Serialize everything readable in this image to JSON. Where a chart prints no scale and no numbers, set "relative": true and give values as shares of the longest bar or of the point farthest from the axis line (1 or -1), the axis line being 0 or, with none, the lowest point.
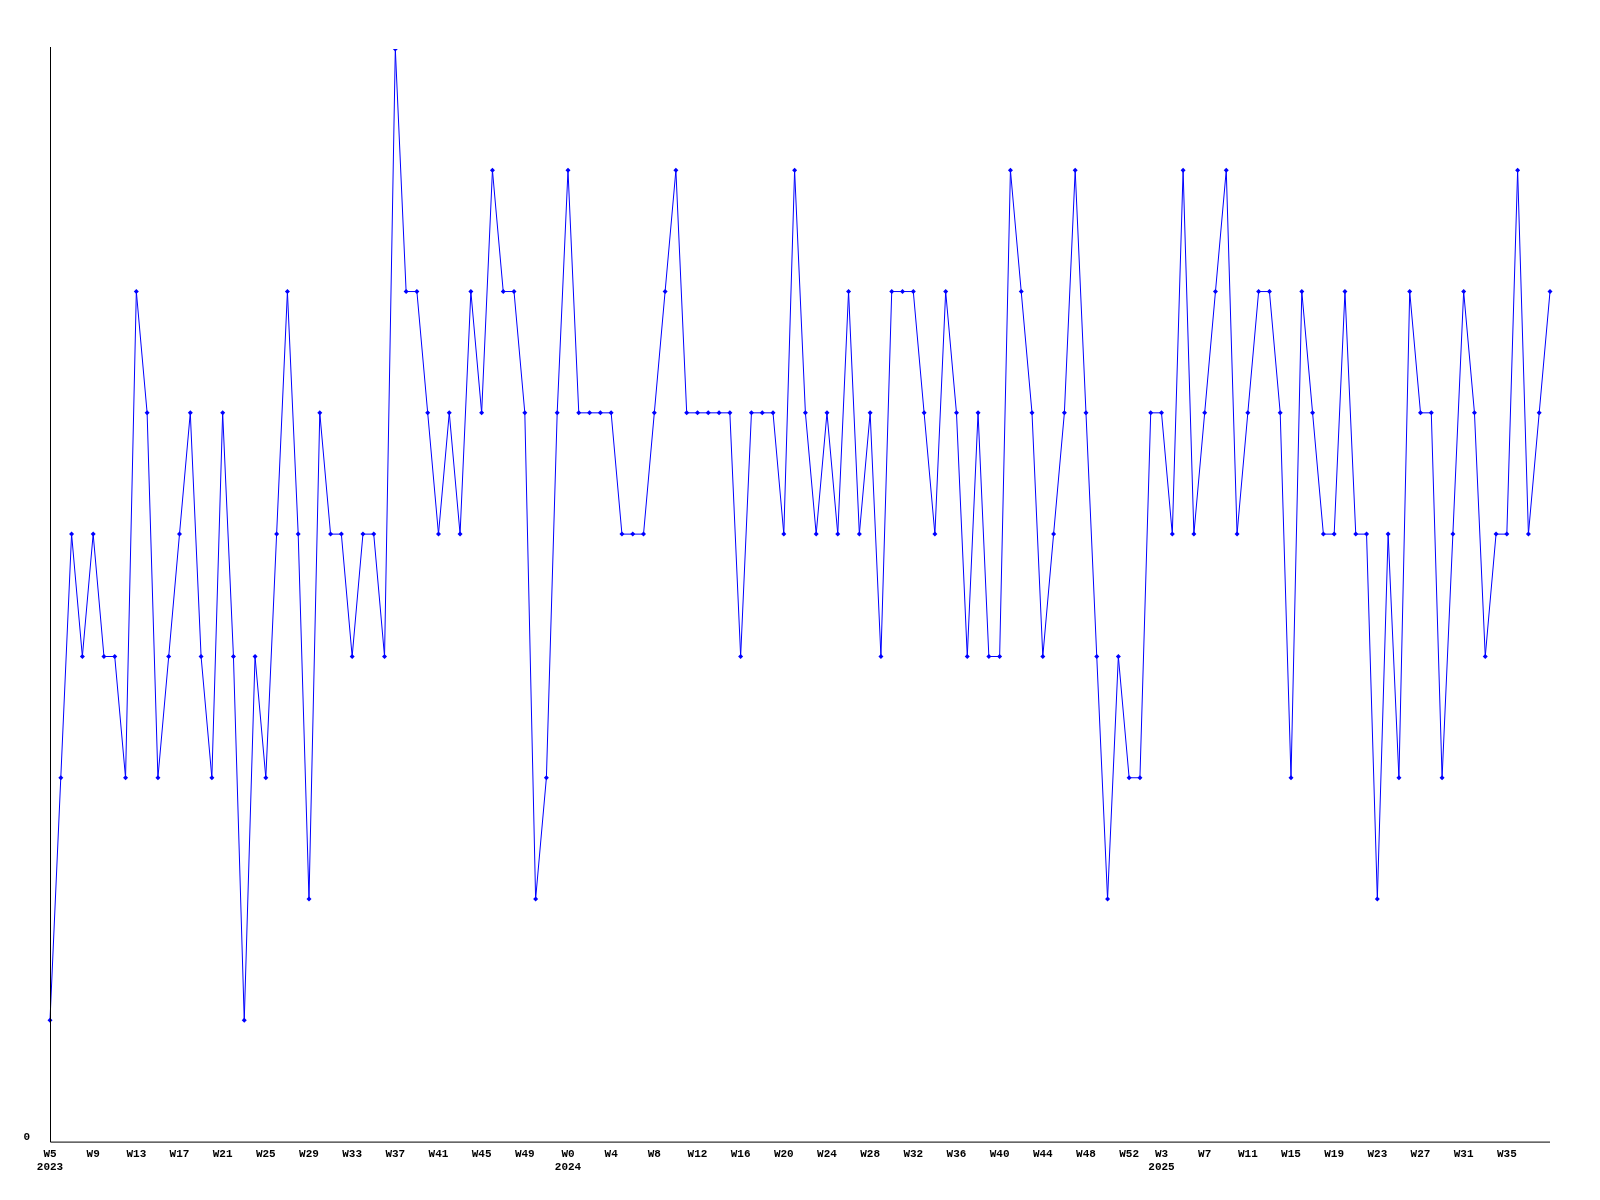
{
  "chart_data": {
    "type": "line",
    "relative": true,
    "color": "#0000ff",
    "marker": "diamond",
    "grid": false,
    "legend": false,
    "categories": [
      "W5\n2023",
      null,
      null,
      null,
      "W9",
      null,
      null,
      null,
      "W13",
      null,
      null,
      null,
      "W17",
      null,
      null,
      null,
      "W21",
      null,
      null,
      null,
      "W25",
      null,
      null,
      null,
      "W29",
      null,
      null,
      null,
      "W33",
      null,
      null,
      null,
      "W37",
      null,
      null,
      null,
      "W41",
      null,
      null,
      null,
      "W45",
      null,
      null,
      null,
      "W49",
      null,
      null,
      null,
      "W0\n2024",
      null,
      null,
      null,
      "W4",
      null,
      null,
      null,
      "W8",
      null,
      null,
      null,
      "W12",
      null,
      null,
      null,
      "W16",
      null,
      null,
      null,
      "W20",
      null,
      null,
      null,
      "W24",
      null,
      null,
      null,
      "W28",
      null,
      null,
      null,
      "W32",
      null,
      null,
      null,
      "W36",
      null,
      null,
      null,
      "W40",
      null,
      null,
      null,
      "W44",
      null,
      null,
      null,
      "W48",
      null,
      null,
      null,
      "W52",
      null,
      null,
      "W3\n2025",
      null,
      null,
      null,
      "W7",
      null,
      null,
      null,
      "W11",
      null,
      null,
      null,
      "W15",
      null,
      null,
      null,
      "W19",
      null,
      null,
      null,
      "W23",
      null,
      null,
      null,
      "W27",
      null,
      null,
      null,
      "W31",
      null,
      null,
      null,
      "W35",
      null,
      null,
      null,
      null
    ],
    "values": [
      0.111,
      0.333,
      0.556,
      0.444,
      0.556,
      0.444,
      0.444,
      0.333,
      0.778,
      0.667,
      0.333,
      0.444,
      0.556,
      0.667,
      0.444,
      0.333,
      0.667,
      0.444,
      0.111,
      0.444,
      0.333,
      0.556,
      0.778,
      0.556,
      0.222,
      0.667,
      0.556,
      0.556,
      0.444,
      0.556,
      0.556,
      0.444,
      1,
      0.778,
      0.778,
      0.667,
      0.556,
      0.667,
      0.556,
      0.778,
      0.667,
      0.889,
      0.778,
      0.778,
      0.667,
      0.222,
      0.333,
      0.667,
      0.889,
      0.667,
      0.667,
      0.667,
      0.667,
      0.556,
      0.556,
      0.556,
      0.667,
      0.778,
      0.889,
      0.667,
      0.667,
      0.667,
      0.667,
      0.667,
      0.444,
      0.667,
      0.667,
      0.667,
      0.556,
      0.889,
      0.667,
      0.556,
      0.667,
      0.556,
      0.778,
      0.556,
      0.667,
      0.444,
      0.778,
      0.778,
      0.778,
      0.667,
      0.556,
      0.778,
      0.667,
      0.444,
      0.667,
      0.444,
      0.444,
      0.889,
      0.778,
      0.667,
      0.444,
      0.556,
      0.667,
      0.889,
      0.667,
      0.444,
      0.222,
      0.444,
      0.333,
      0.333,
      0.667,
      0.667,
      0.556,
      0.889,
      0.556,
      0.667,
      0.778,
      0.889,
      0.556,
      0.667,
      0.778,
      0.778,
      0.667,
      0.333,
      0.778,
      0.667,
      0.556,
      0.556,
      0.778,
      0.556,
      0.556,
      0.222,
      0.556,
      0.333,
      0.778,
      0.667,
      0.667,
      0.333,
      0.556,
      0.778,
      0.667,
      0.444,
      0.556,
      0.556,
      0.889,
      0.556,
      0.667,
      0.778
    ],
    "annotations": [
      "0"
    ]
  }
}
